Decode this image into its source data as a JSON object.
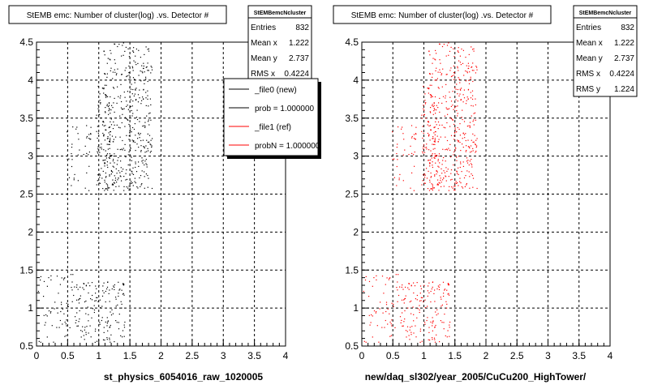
{
  "chart_data": [
    {
      "type": "scatter",
      "title": "StEMB emc: Number of cluster(log) .vs. Detector #",
      "xlabel": "st_physics_6054016_raw_1020005",
      "xlim": [
        0,
        4
      ],
      "ylim": [
        0.5,
        4.5
      ],
      "xticks": [
        "0",
        "0.5",
        "1",
        "1.5",
        "2",
        "2.5",
        "3",
        "3.5",
        "4"
      ],
      "yticks": [
        "0.5",
        "1",
        "1.5",
        "2",
        "2.5",
        "3",
        "3.5",
        "4",
        "4.5"
      ],
      "grid": true,
      "point_color": "#000000",
      "stats": {
        "name": "StEMBemcNcluster",
        "rows": [
          {
            "label": "Entries",
            "value": "832"
          },
          {
            "label": "Mean x",
            "value": "1.222"
          },
          {
            "label": "Mean y",
            "value": "2.737"
          },
          {
            "label": "RMS x",
            "value": "0.4224"
          }
        ]
      },
      "legend": {
        "placement": "top-right",
        "entries": [
          {
            "label": "_file0 (new)",
            "color": "#000000"
          },
          {
            "label": "prob = 1.000000",
            "color": "#000000"
          },
          {
            "label": "_file1 (ref)",
            "color": "#ff0000"
          },
          {
            "label": "probN = 1.000000",
            "color": "#ff0000"
          }
        ]
      },
      "clusters": [
        {
          "x": [
            0.02,
            0.35
          ],
          "y": [
            0.55,
            1.45
          ],
          "n": 28
        },
        {
          "x": [
            0.35,
            0.62
          ],
          "y": [
            0.55,
            1.45
          ],
          "n": 32
        },
        {
          "x": [
            0.62,
            1.0
          ],
          "y": [
            0.55,
            1.35
          ],
          "n": 70
        },
        {
          "x": [
            1.0,
            1.42
          ],
          "y": [
            0.55,
            1.35
          ],
          "n": 85
        },
        {
          "x": [
            0.48,
            0.9
          ],
          "y": [
            2.55,
            3.45
          ],
          "n": 40
        },
        {
          "x": [
            0.95,
            1.25
          ],
          "y": [
            2.55,
            3.95
          ],
          "n": 120
        },
        {
          "x": [
            1.05,
            1.45
          ],
          "y": [
            2.55,
            4.5
          ],
          "n": 170
        },
        {
          "x": [
            1.45,
            1.85
          ],
          "y": [
            2.55,
            4.45
          ],
          "n": 230
        }
      ]
    },
    {
      "type": "scatter",
      "title": "StEMB emc: Number of cluster(log) .vs. Detector #",
      "xlabel": "new/daq_sl302/year_2005/CuCu200_HighTower/",
      "xlim": [
        0,
        4
      ],
      "ylim": [
        0.5,
        4.5
      ],
      "xticks": [
        "0",
        "0.5",
        "1",
        "1.5",
        "2",
        "2.5",
        "3",
        "3.5",
        "4"
      ],
      "yticks": [
        "0.5",
        "1",
        "1.5",
        "2",
        "2.5",
        "3",
        "3.5",
        "4",
        "4.5"
      ],
      "grid": true,
      "point_color": "#ff0000",
      "stats": {
        "name": "StEMBemcNcluster",
        "rows": [
          {
            "label": "Entries",
            "value": "832"
          },
          {
            "label": "Mean x",
            "value": "1.222"
          },
          {
            "label": "Mean y",
            "value": "2.737"
          },
          {
            "label": "RMS x",
            "value": "0.4224"
          },
          {
            "label": "RMS y",
            "value": "1.224"
          }
        ]
      },
      "clusters": [
        {
          "x": [
            0.02,
            0.35
          ],
          "y": [
            0.55,
            1.45
          ],
          "n": 28
        },
        {
          "x": [
            0.35,
            0.62
          ],
          "y": [
            0.55,
            1.45
          ],
          "n": 32
        },
        {
          "x": [
            0.62,
            1.0
          ],
          "y": [
            0.55,
            1.35
          ],
          "n": 70
        },
        {
          "x": [
            1.0,
            1.42
          ],
          "y": [
            0.55,
            1.35
          ],
          "n": 85
        },
        {
          "x": [
            0.48,
            0.9
          ],
          "y": [
            2.55,
            3.45
          ],
          "n": 40
        },
        {
          "x": [
            0.95,
            1.25
          ],
          "y": [
            2.55,
            3.95
          ],
          "n": 120
        },
        {
          "x": [
            1.05,
            1.45
          ],
          "y": [
            2.55,
            4.5
          ],
          "n": 170
        },
        {
          "x": [
            1.45,
            1.85
          ],
          "y": [
            2.55,
            4.45
          ],
          "n": 230
        }
      ]
    }
  ]
}
